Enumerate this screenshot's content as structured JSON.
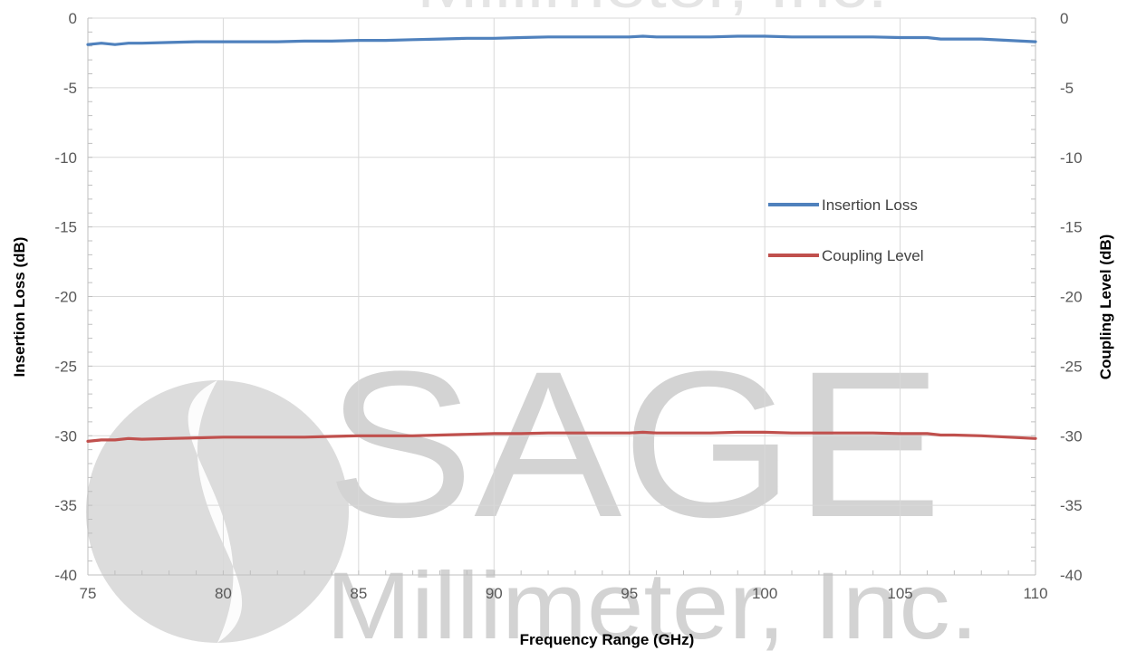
{
  "chart_data": {
    "type": "line",
    "title": "",
    "xlabel": "Frequency Range (GHz)",
    "ylabel": "Insertion Loss (dB)",
    "y2label": "Coupling Level (dB)",
    "xlim": [
      75,
      110
    ],
    "ylim": [
      -40,
      0
    ],
    "y2lim": [
      -40,
      0
    ],
    "x_ticks": [
      "75",
      "80",
      "85",
      "90",
      "95",
      "100",
      "105",
      "110"
    ],
    "y_ticks": [
      "0",
      "-5",
      "-10",
      "-15",
      "-20",
      "-25",
      "-30",
      "-35",
      "-40"
    ],
    "y2_ticks": [
      "0",
      "-5",
      "-10",
      "-15",
      "-20",
      "-25",
      "-30",
      "-35",
      "-40"
    ],
    "grid": true,
    "legend_position": "center-right",
    "series": [
      {
        "name": "Insertion Loss",
        "axis": "left",
        "color": "#4f81bd",
        "x": [
          75,
          75.5,
          76,
          76.5,
          77,
          78,
          79,
          80,
          81,
          82,
          83,
          84,
          85,
          86,
          87,
          88,
          89,
          90,
          91,
          92,
          93,
          94,
          95,
          95.5,
          96,
          97,
          98,
          99,
          100,
          101,
          102,
          103,
          104,
          105,
          106,
          106.5,
          107,
          108,
          109,
          110
        ],
        "values": [
          -1.9,
          -1.8,
          -1.9,
          -1.8,
          -1.8,
          -1.75,
          -1.7,
          -1.7,
          -1.7,
          -1.7,
          -1.65,
          -1.65,
          -1.6,
          -1.6,
          -1.55,
          -1.5,
          -1.45,
          -1.45,
          -1.4,
          -1.35,
          -1.35,
          -1.35,
          -1.35,
          -1.3,
          -1.35,
          -1.35,
          -1.35,
          -1.3,
          -1.3,
          -1.35,
          -1.35,
          -1.35,
          -1.35,
          -1.4,
          -1.4,
          -1.5,
          -1.5,
          -1.5,
          -1.6,
          -1.7
        ]
      },
      {
        "name": "Coupling Level",
        "axis": "right",
        "color": "#c0504d",
        "x": [
          75,
          75.5,
          76,
          76.5,
          77,
          78,
          79,
          80,
          81,
          82,
          83,
          84,
          85,
          86,
          87,
          88,
          89,
          90,
          91,
          92,
          93,
          94,
          95,
          95.5,
          96,
          97,
          98,
          99,
          100,
          101,
          102,
          103,
          104,
          105,
          106,
          106.5,
          107,
          108,
          109,
          110
        ],
        "values": [
          -30.4,
          -30.3,
          -30.3,
          -30.2,
          -30.25,
          -30.2,
          -30.15,
          -30.1,
          -30.1,
          -30.1,
          -30.1,
          -30.05,
          -30.0,
          -30.0,
          -30.0,
          -29.95,
          -29.9,
          -29.85,
          -29.85,
          -29.8,
          -29.8,
          -29.8,
          -29.8,
          -29.75,
          -29.8,
          -29.8,
          -29.8,
          -29.75,
          -29.75,
          -29.8,
          -29.8,
          -29.8,
          -29.8,
          -29.85,
          -29.85,
          -29.95,
          -29.95,
          -30.0,
          -30.1,
          -30.2
        ]
      }
    ]
  },
  "watermark": {
    "logo": "SAGE",
    "tagline": "Millimeter, Inc."
  }
}
